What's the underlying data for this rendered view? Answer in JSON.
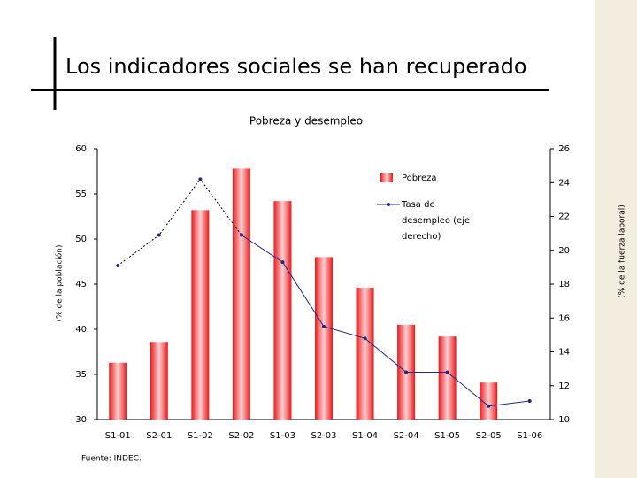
{
  "slide_title": "Los indicadores sociales se han recuperado",
  "chart_data": {
    "type": "bar",
    "title": "Pobreza y desempleo",
    "categories": [
      "S1-01",
      "S2-01",
      "S1-02",
      "S2-02",
      "S1-03",
      "S2-03",
      "S1-04",
      "S2-04",
      "S1-05",
      "S2-05",
      "S1-06"
    ],
    "series": [
      {
        "name": "Pobreza",
        "color": "#e8181c",
        "values": [
          36.3,
          38.6,
          53.2,
          57.8,
          54.2,
          48.0,
          44.6,
          40.5,
          39.2,
          34.1,
          null
        ]
      },
      {
        "name": "Tasa de desempleo (eje derecho)",
        "color": "#1f2a80",
        "axis": "y2",
        "values": [
          19.1,
          20.9,
          24.2,
          20.9,
          19.3,
          15.5,
          14.8,
          12.8,
          12.8,
          10.8,
          11.1
        ]
      }
    ],
    "ylabel": "(% de la población)",
    "y2label": "(% de la fuerza laboral)",
    "ylim": [
      30,
      60
    ],
    "yticks": [
      30,
      35,
      40,
      45,
      50,
      55,
      60
    ],
    "y2lim": [
      10,
      26
    ],
    "y2ticks": [
      10,
      12,
      14,
      16,
      18,
      20,
      22,
      24,
      26
    ],
    "source": "Fuente: INDEC."
  }
}
